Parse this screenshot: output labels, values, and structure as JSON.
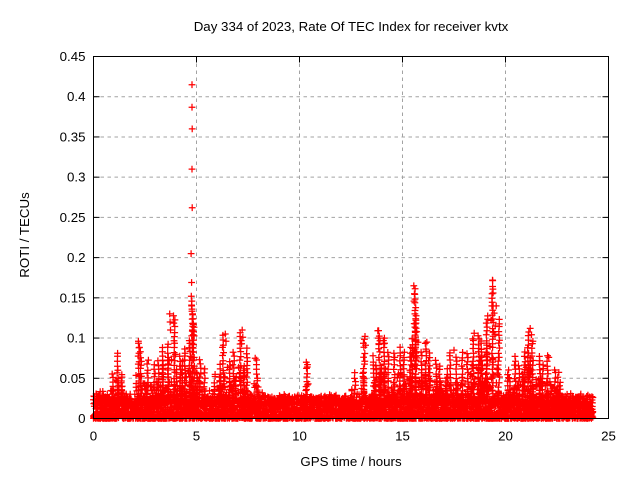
{
  "window": {
    "background": "#ffffff"
  },
  "chart_data": {
    "type": "scatter",
    "title": "Day 334 of 2023, Rate Of TEC Index for receiver kvtx",
    "xlabel": "GPS time / hours",
    "ylabel": "ROTI / TECUs",
    "series_name": "ROTI",
    "marker": "plus",
    "color": "#ff0000",
    "grid_color": "#a3a3a3",
    "grid_style": "dashed",
    "legend": "none",
    "xlim": [
      0,
      25
    ],
    "ylim": [
      0,
      0.45
    ],
    "xticks": [
      0,
      5,
      10,
      15,
      20,
      25
    ],
    "xtick_labels": [
      "0",
      "5",
      "10",
      "15",
      "20",
      "25"
    ],
    "yticks": [
      0,
      0.05,
      0.1,
      0.15,
      0.2,
      0.25,
      0.3,
      0.35,
      0.4,
      0.45
    ],
    "ytick_labels": [
      "0",
      "0.05",
      "0.1",
      "0.15",
      "0.2",
      "0.25",
      "0.3",
      "0.35",
      "0.4",
      "0.45"
    ],
    "data_extent_hours": [
      0,
      24.2
    ],
    "baseline": {
      "solid_band_max": 0.03,
      "description": "dense continuous band of points from 0 to ~0.03 TECUs across all hours"
    },
    "envelope_bin_hours": 0.25,
    "envelope": [
      [
        0.125,
        0.05
      ],
      [
        0.375,
        0.056
      ],
      [
        0.625,
        0.048
      ],
      [
        0.875,
        0.06
      ],
      [
        1.125,
        0.081
      ],
      [
        1.375,
        0.06
      ],
      [
        1.625,
        0.05
      ],
      [
        1.875,
        0.056
      ],
      [
        2.125,
        0.096
      ],
      [
        2.375,
        0.085
      ],
      [
        2.625,
        0.076
      ],
      [
        2.875,
        0.07
      ],
      [
        3.125,
        0.076
      ],
      [
        3.375,
        0.09
      ],
      [
        3.625,
        0.095
      ],
      [
        3.875,
        0.13
      ],
      [
        4.125,
        0.08
      ],
      [
        4.375,
        0.09
      ],
      [
        4.625,
        0.1
      ],
      [
        4.875,
        0.14
      ],
      [
        5.125,
        0.072
      ],
      [
        5.375,
        0.065
      ],
      [
        5.625,
        0.056
      ],
      [
        5.875,
        0.06
      ],
      [
        6.125,
        0.07
      ],
      [
        6.375,
        0.105
      ],
      [
        6.625,
        0.072
      ],
      [
        6.875,
        0.085
      ],
      [
        7.125,
        0.11
      ],
      [
        7.375,
        0.088
      ],
      [
        7.625,
        0.056
      ],
      [
        7.875,
        0.075
      ],
      [
        8.125,
        0.052
      ],
      [
        8.375,
        0.048
      ],
      [
        8.625,
        0.046
      ],
      [
        8.875,
        0.043
      ],
      [
        9.125,
        0.05
      ],
      [
        9.375,
        0.055
      ],
      [
        9.625,
        0.036
      ],
      [
        9.875,
        0.033
      ],
      [
        10.125,
        0.042
      ],
      [
        10.375,
        0.07
      ],
      [
        10.625,
        0.046
      ],
      [
        10.875,
        0.038
      ],
      [
        11.125,
        0.036
      ],
      [
        11.375,
        0.04
      ],
      [
        11.625,
        0.046
      ],
      [
        11.875,
        0.042
      ],
      [
        12.125,
        0.038
      ],
      [
        12.375,
        0.042
      ],
      [
        12.625,
        0.061
      ],
      [
        12.875,
        0.05
      ],
      [
        13.125,
        0.1
      ],
      [
        13.375,
        0.055
      ],
      [
        13.625,
        0.08
      ],
      [
        13.875,
        0.109
      ],
      [
        14.125,
        0.1
      ],
      [
        14.375,
        0.082
      ],
      [
        14.625,
        0.085
      ],
      [
        14.875,
        0.09
      ],
      [
        15.125,
        0.085
      ],
      [
        15.375,
        0.1
      ],
      [
        15.625,
        0.165
      ],
      [
        15.875,
        0.082
      ],
      [
        16.125,
        0.095
      ],
      [
        16.375,
        0.085
      ],
      [
        16.625,
        0.076
      ],
      [
        16.875,
        0.07
      ],
      [
        17.125,
        0.066
      ],
      [
        17.375,
        0.085
      ],
      [
        17.625,
        0.08
      ],
      [
        17.875,
        0.082
      ],
      [
        18.125,
        0.086
      ],
      [
        18.375,
        0.098
      ],
      [
        18.625,
        0.106
      ],
      [
        18.875,
        0.1
      ],
      [
        19.125,
        0.13
      ],
      [
        19.375,
        0.172
      ],
      [
        19.625,
        0.125
      ],
      [
        19.875,
        0.05
      ],
      [
        20.125,
        0.062
      ],
      [
        20.375,
        0.078
      ],
      [
        20.625,
        0.07
      ],
      [
        20.875,
        0.085
      ],
      [
        21.125,
        0.112
      ],
      [
        21.375,
        0.095
      ],
      [
        21.625,
        0.08
      ],
      [
        21.875,
        0.07
      ],
      [
        22.125,
        0.078
      ],
      [
        22.375,
        0.062
      ],
      [
        22.625,
        0.06
      ],
      [
        22.875,
        0.055
      ],
      [
        23.125,
        0.05
      ],
      [
        23.375,
        0.048
      ],
      [
        23.625,
        0.05
      ],
      [
        23.875,
        0.046
      ],
      [
        24.125,
        0.035
      ]
    ],
    "notable_points": [
      [
        4.78,
        0.415
      ],
      [
        4.78,
        0.387
      ],
      [
        4.79,
        0.36
      ],
      [
        4.78,
        0.31
      ],
      [
        4.79,
        0.262
      ],
      [
        4.74,
        0.205
      ],
      [
        4.76,
        0.169
      ],
      [
        4.75,
        0.152
      ],
      [
        4.77,
        0.146
      ],
      [
        4.76,
        0.141
      ],
      [
        4.78,
        0.136
      ],
      [
        4.81,
        0.13
      ],
      [
        4.83,
        0.124
      ],
      [
        4.85,
        0.117
      ],
      [
        4.8,
        0.11
      ],
      [
        4.84,
        0.104
      ],
      [
        3.7,
        0.13
      ],
      [
        3.72,
        0.12
      ],
      [
        3.74,
        0.11
      ],
      [
        2.18,
        0.096
      ],
      [
        2.21,
        0.088
      ],
      [
        1.17,
        0.081
      ],
      [
        6.4,
        0.105
      ],
      [
        6.43,
        0.096
      ],
      [
        7.22,
        0.11
      ],
      [
        7.25,
        0.101
      ],
      [
        7.19,
        0.093
      ],
      [
        7.85,
        0.075
      ],
      [
        10.33,
        0.07
      ],
      [
        10.38,
        0.064
      ],
      [
        13.18,
        0.102
      ],
      [
        13.21,
        0.091
      ],
      [
        13.8,
        0.109
      ],
      [
        13.83,
        0.1
      ],
      [
        13.86,
        0.092
      ],
      [
        14.12,
        0.1
      ],
      [
        14.09,
        0.093
      ],
      [
        15.55,
        0.165
      ],
      [
        15.58,
        0.155
      ],
      [
        15.56,
        0.146
      ],
      [
        15.6,
        0.13
      ],
      [
        15.57,
        0.118
      ],
      [
        15.62,
        0.107
      ],
      [
        15.65,
        0.096
      ],
      [
        16.18,
        0.095
      ],
      [
        17.5,
        0.085
      ],
      [
        18.48,
        0.106
      ],
      [
        18.44,
        0.097
      ],
      [
        19.37,
        0.172
      ],
      [
        19.4,
        0.156
      ],
      [
        19.34,
        0.14
      ],
      [
        19.55,
        0.14
      ],
      [
        19.45,
        0.131
      ],
      [
        19.3,
        0.122
      ],
      [
        19.5,
        0.115
      ],
      [
        19.42,
        0.108
      ],
      [
        21.2,
        0.112
      ],
      [
        21.26,
        0.104
      ],
      [
        21.33,
        0.096
      ],
      [
        22.1,
        0.076
      ]
    ]
  }
}
